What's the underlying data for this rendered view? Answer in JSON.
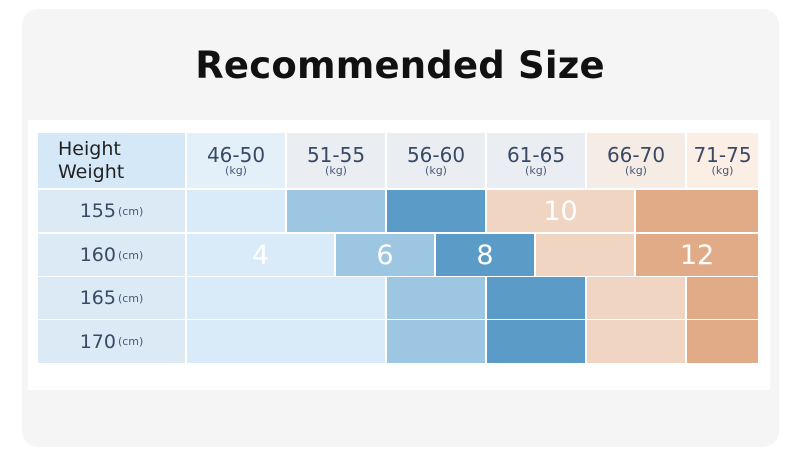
{
  "title": "Recommended Size",
  "corner": {
    "line1": "Height",
    "line2": "Weight"
  },
  "weight_columns": [
    {
      "range": "46-50",
      "unit": "(kg)"
    },
    {
      "range": "51-55",
      "unit": "(kg)"
    },
    {
      "range": "56-60",
      "unit": "(kg)"
    },
    {
      "range": "61-65",
      "unit": "(kg)"
    },
    {
      "range": "66-70",
      "unit": "(kg)"
    },
    {
      "range": "71-75",
      "unit": "(kg)"
    }
  ],
  "height_rows": [
    {
      "value": "155",
      "unit": "(cm)"
    },
    {
      "value": "160",
      "unit": "(cm)"
    },
    {
      "value": "165",
      "unit": "(cm)"
    },
    {
      "value": "170",
      "unit": "(cm)"
    }
  ],
  "size_labels": {
    "s4": "4",
    "s6": "6",
    "s8": "8",
    "s10": "10",
    "s12": "12"
  },
  "colors": {
    "size_4": "#d9ebf8",
    "size_6": "#9cc6e2",
    "size_8": "#5b9bc8",
    "size_10": "#f0d5c2",
    "size_12": "#e0ab86"
  }
}
